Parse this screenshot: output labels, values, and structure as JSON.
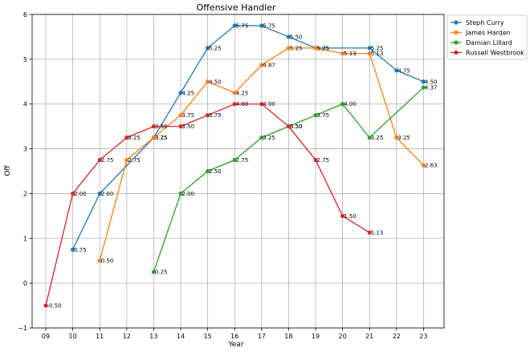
{
  "chart_data": {
    "type": "line",
    "title": "Offensive Handler",
    "xlabel": "Year",
    "ylabel": "Off",
    "categories": [
      "09",
      "10",
      "11",
      "12",
      "13",
      "14",
      "15",
      "16",
      "17",
      "18",
      "19",
      "20",
      "21",
      "22",
      "23"
    ],
    "ylim": [
      -1,
      6
    ],
    "yticks": [
      "−1",
      "0",
      "1",
      "2",
      "3",
      "4",
      "5",
      "6"
    ],
    "grid": true,
    "legend_position": "top-right",
    "series": [
      {
        "name": "Steph Curry",
        "color": "#1f77b4",
        "points": [
          [
            "10",
            0.75
          ],
          [
            "11",
            2.0
          ],
          [
            "13",
            3.25
          ],
          [
            "14",
            4.25
          ],
          [
            "15",
            5.25
          ],
          [
            "16",
            5.75
          ],
          [
            "17",
            5.75
          ],
          [
            "18",
            5.5
          ],
          [
            "19",
            5.25
          ],
          [
            "21",
            5.25
          ],
          [
            "22",
            4.75
          ],
          [
            "23",
            4.5
          ]
        ],
        "labels": [
          "0.75",
          "2.00",
          "3.25",
          "4.25",
          "5.25",
          "5.75",
          "5.75",
          "5.50",
          "5.25",
          "5.25",
          "4.75",
          "4.50"
        ]
      },
      {
        "name": "James Harden",
        "color": "#ff7f0e",
        "points": [
          [
            "11",
            0.5
          ],
          [
            "12",
            2.75
          ],
          [
            "13",
            3.25
          ],
          [
            "14",
            3.75
          ],
          [
            "15",
            4.5
          ],
          [
            "16",
            4.25
          ],
          [
            "17",
            4.87
          ],
          [
            "18",
            5.25
          ],
          [
            "19",
            5.25
          ],
          [
            "20",
            5.13
          ],
          [
            "21",
            5.13
          ],
          [
            "22",
            3.25
          ],
          [
            "23",
            2.63
          ]
        ],
        "labels": [
          "0.50",
          "2.75",
          "3.25",
          "3.75",
          "4.50",
          "4.25",
          "4.87",
          "5.25",
          "5.25",
          "5.13",
          "5.13",
          "3.25",
          "2.63"
        ]
      },
      {
        "name": "Damian Lillard",
        "color": "#2ca02c",
        "points": [
          [
            "13",
            0.25
          ],
          [
            "14",
            2.0
          ],
          [
            "15",
            2.5
          ],
          [
            "16",
            2.75
          ],
          [
            "17",
            3.25
          ],
          [
            "18",
            3.5
          ],
          [
            "19",
            3.75
          ],
          [
            "20",
            4.0
          ],
          [
            "21",
            3.25
          ],
          [
            "23",
            4.37
          ]
        ],
        "labels": [
          "0.25",
          "2.00",
          "2.50",
          "2.75",
          "3.25",
          "3.50",
          "3.75",
          "4.00",
          "3.25",
          "4.37"
        ]
      },
      {
        "name": "Russell Westbrook",
        "color": "#d62728",
        "points": [
          [
            "09",
            -0.5
          ],
          [
            "10",
            2.0
          ],
          [
            "11",
            2.75
          ],
          [
            "12",
            3.25
          ],
          [
            "13",
            3.5
          ],
          [
            "14",
            3.5
          ],
          [
            "15",
            3.75
          ],
          [
            "16",
            4.0
          ],
          [
            "17",
            4.0
          ],
          [
            "18",
            3.5
          ],
          [
            "19",
            2.75
          ],
          [
            "20",
            1.5
          ],
          [
            "21",
            1.13
          ]
        ],
        "labels": [
          "-0.50",
          "2.00",
          "2.75",
          "3.25",
          "3.50",
          "3.50",
          "3.75",
          "4.00",
          "4.00",
          "3.50",
          "2.75",
          "1.50",
          "1.13"
        ]
      }
    ]
  }
}
